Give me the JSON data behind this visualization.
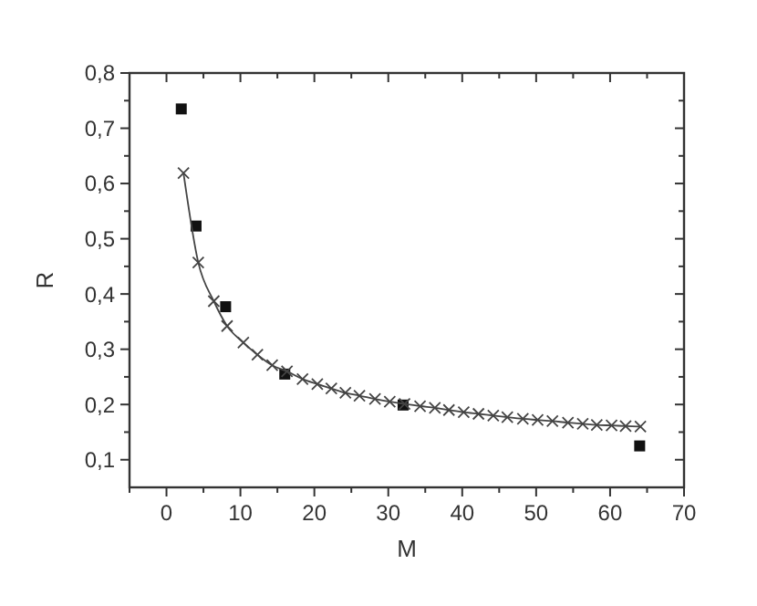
{
  "chart_data": {
    "type": "scatter",
    "xlabel": "M",
    "ylabel": "R",
    "xlim": [
      -5,
      70
    ],
    "ylim": [
      0.05,
      0.8
    ],
    "xticks": [
      {
        "value": -5,
        "label": null
      },
      0,
      {
        "value": 5,
        "label": null
      },
      10,
      {
        "value": 15,
        "label": null
      },
      20,
      {
        "value": 25,
        "label": null
      },
      30,
      {
        "value": 35,
        "label": null
      },
      40,
      {
        "value": 45,
        "label": null
      },
      50,
      {
        "value": 55,
        "label": null
      },
      60,
      {
        "value": 65,
        "label": null
      },
      70
    ],
    "yticks": [
      {
        "value": 0.1,
        "label": "0,1"
      },
      {
        "value": 0.15,
        "label": null
      },
      {
        "value": 0.2,
        "label": "0,2"
      },
      {
        "value": 0.25,
        "label": null
      },
      {
        "value": 0.3,
        "label": "0,3"
      },
      {
        "value": 0.35,
        "label": null
      },
      {
        "value": 0.4,
        "label": "0,4"
      },
      {
        "value": 0.45,
        "label": null
      },
      {
        "value": 0.5,
        "label": "0,5"
      },
      {
        "value": 0.55,
        "label": null
      },
      {
        "value": 0.6,
        "label": "0,6"
      },
      {
        "value": 0.65,
        "label": null
      },
      {
        "value": 0.7,
        "label": "0,7"
      },
      {
        "value": 0.75,
        "label": null
      },
      {
        "value": 0.8,
        "label": "0,8"
      }
    ],
    "grid": false,
    "series": [
      {
        "marker": "square",
        "color": "#111111",
        "x": [
          2,
          4,
          8,
          16,
          32,
          64
        ],
        "values": [
          0.735,
          0.523,
          0.377,
          0.255,
          0.199,
          0.125
        ]
      },
      {
        "type": "line",
        "marker": "cross",
        "line_style": "solid",
        "color": "#444444",
        "x": [
          2.3,
          4.3,
          6.4,
          8.2,
          10.4,
          12.3,
          14.3,
          16.3,
          18.4,
          20.4,
          22.3,
          24.2,
          26.1,
          28.2,
          30.2,
          32.2,
          34.3,
          36.3,
          38.2,
          40.2,
          42.2,
          44.2,
          46.1,
          48.2,
          50.2,
          52.2,
          54.3,
          56.3,
          58.2,
          60.2,
          62.1,
          64.1
        ],
        "values": [
          0.619,
          0.457,
          0.387,
          0.342,
          0.312,
          0.29,
          0.271,
          0.26,
          0.246,
          0.237,
          0.229,
          0.221,
          0.216,
          0.21,
          0.205,
          0.201,
          0.197,
          0.194,
          0.19,
          0.186,
          0.183,
          0.18,
          0.177,
          0.174,
          0.172,
          0.17,
          0.167,
          0.165,
          0.163,
          0.162,
          0.161,
          0.16
        ]
      }
    ]
  }
}
